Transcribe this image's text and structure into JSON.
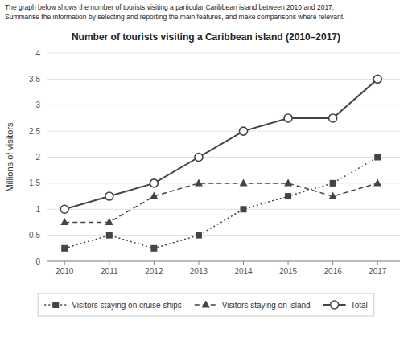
{
  "chart_data": {
    "type": "line",
    "title": "Number of tourists visiting a Caribbean island (2010–2017)",
    "annotations": [
      "The graph below shows the number of tourists visiting a particular Caribbean island between 2010 and 2017.",
      "Summarise the information by selecting and reporting the main features, and make comparisons where relevant."
    ],
    "y_label": "Millions of visitors",
    "x": [
      2010,
      2011,
      2012,
      2013,
      2014,
      2015,
      2016,
      2017
    ],
    "xlim": [
      2009.6,
      2017.5
    ],
    "xticks": [
      2010,
      2011,
      2012,
      2013,
      2014,
      2015,
      2016,
      2017
    ],
    "ylim": [
      0,
      4
    ],
    "yticks": [
      0,
      0.5,
      1,
      1.5,
      2,
      2.5,
      3,
      3.5,
      4
    ],
    "grid": true,
    "legend": "bottom",
    "series": [
      {
        "name": "Visitors staying on cruise ships",
        "color": "#444444",
        "marker": "square",
        "line_style": "dotted",
        "values": [
          0.25,
          0.5,
          0.25,
          0.5,
          1.0,
          1.25,
          1.5,
          2.0
        ]
      },
      {
        "name": "Visitors staying on island",
        "color": "#444444",
        "marker": "triangle",
        "line_style": "dashed",
        "values": [
          0.75,
          0.75,
          1.25,
          1.5,
          1.5,
          1.5,
          1.25,
          1.5
        ]
      },
      {
        "name": "Total",
        "color": "#444444",
        "marker": "circle",
        "line_style": "solid",
        "values": [
          1.0,
          1.25,
          1.5,
          2.0,
          2.5,
          2.75,
          2.75,
          3.5
        ]
      }
    ]
  }
}
